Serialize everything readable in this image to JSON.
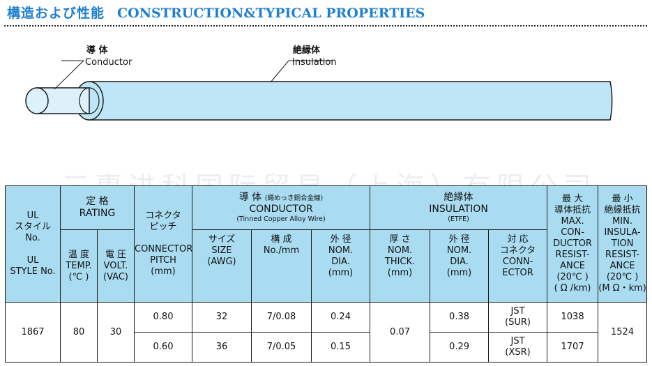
{
  "header": {
    "title_jp": "構造および性能",
    "title_en": "CONSTRUCTION&TYPICAL PROPERTIES"
  },
  "diagram": {
    "conductor_jp": "導 体",
    "conductor_en": "Conductor",
    "insulation_jp": "絶縁体",
    "insulation_en": "Insulation",
    "colors": {
      "insulation": "#bfe6f6",
      "conductor": "#dcf1fa",
      "outline": "#1a1a1a"
    }
  },
  "watermark": "三惠进科国际贸易（上海）有限公司",
  "table": {
    "headers": {
      "ul_style": [
        "UL",
        "スタイル",
        "No.",
        "",
        "UL",
        "STYLE No."
      ],
      "rating": [
        "定 格",
        "RATING"
      ],
      "temp": [
        "温 度",
        "TEMP.",
        "(℃ )"
      ],
      "volt": [
        "電 圧",
        "VOLT.",
        "(VAC)"
      ],
      "pitch": [
        "コネクタ",
        "ピッチ",
        "",
        "CONNECTOR",
        "PITCH",
        "(mm)"
      ],
      "conductor_jp": "導 体",
      "conductor_note": "(錫めっき銅合金線)",
      "conductor_en": "CONDUCTOR",
      "conductor_sub": "(Tinned Copper Alloy Wire)",
      "size": [
        "サイズ",
        "SIZE",
        "(AWG)"
      ],
      "composition": [
        "構 成",
        "No./mm"
      ],
      "cond_dia": [
        "外 径",
        "NOM.",
        "DIA.",
        "(mm)"
      ],
      "insulation": [
        "絶縁体",
        "INSULATION",
        "(ETFE)"
      ],
      "thick": [
        "厚 さ",
        "NOM.",
        "THICK.",
        "(mm)"
      ],
      "ins_dia": [
        "外 径",
        "NOM.",
        "DIA.",
        "(mm)"
      ],
      "connector": [
        "対 応",
        "コネクタ",
        "CONN-",
        "ECTOR"
      ],
      "max_res": [
        "最 大",
        "導体抵抗",
        "MAX.",
        "CON-",
        "DUCTOR",
        "RESIST-",
        "ANCE",
        "(20℃ )",
        "( Ω /km)"
      ],
      "min_res": [
        "最 小",
        "絶縁抵抗",
        "MIN.",
        "INSULA-",
        "TION",
        "RESIST-",
        "ANCE",
        "(20℃ )",
        "(M Ω・km)"
      ]
    },
    "style_no": "1867",
    "temp": "80",
    "volt": "30",
    "thickness": "0.07",
    "min_resistance": "1524",
    "rows": [
      {
        "pitch": "0.80",
        "size": "32",
        "composition": "7/0.08",
        "cond_dia": "0.24",
        "ins_dia": "0.38",
        "connector": [
          "JST",
          "(SUR)"
        ],
        "max_resistance": "1038"
      },
      {
        "pitch": "0.60",
        "size": "36",
        "composition": "7/0.05",
        "cond_dia": "0.15",
        "ins_dia": "0.29",
        "connector": [
          "JST",
          "(XSR)"
        ],
        "max_resistance": "1707"
      }
    ]
  }
}
